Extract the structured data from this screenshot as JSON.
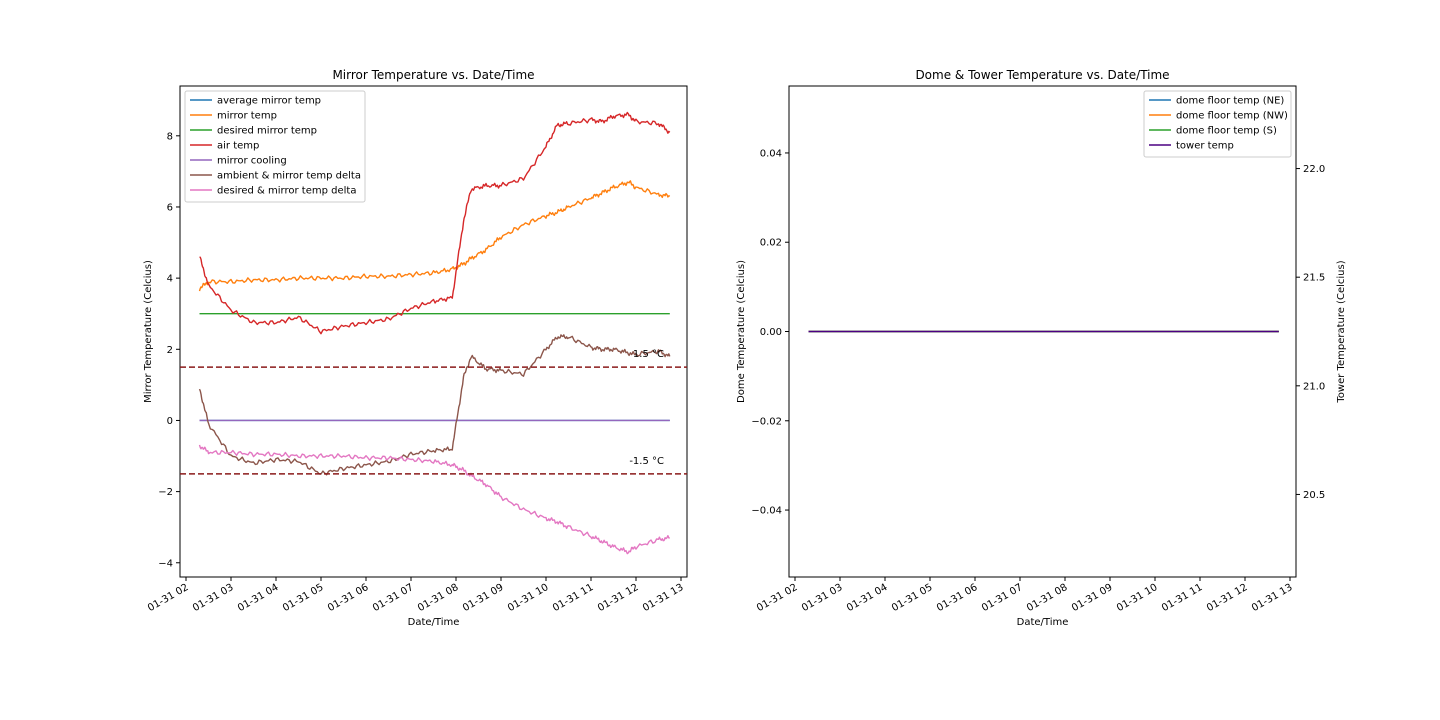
{
  "chart_data": [
    {
      "type": "line",
      "title": "Mirror Temperature vs. Date/Time",
      "xlabel": "Date/Time",
      "ylabel": "Mirror Temperature (Celcius)",
      "xlim": [
        "2023-01-31 01:52",
        "2023-01-31 13:08"
      ],
      "ylim": [
        -4.4,
        9.4
      ],
      "x_ticks": [
        "01-31 02",
        "01-31 03",
        "01-31 04",
        "01-31 05",
        "01-31 06",
        "01-31 07",
        "01-31 08",
        "01-31 09",
        "01-31 10",
        "01-31 11",
        "01-31 12",
        "01-31 13"
      ],
      "y_ticks": [
        "−4",
        "−2",
        "0",
        "2",
        "4",
        "6",
        "8"
      ],
      "legend_position": "upper-left",
      "x": [
        "02:18",
        "02:30",
        "03:00",
        "03:30",
        "04:00",
        "04:30",
        "05:00",
        "05:30",
        "06:00",
        "06:30",
        "07:00",
        "07:30",
        "07:55",
        "08:10",
        "08:20",
        "08:40",
        "09:00",
        "09:30",
        "10:00",
        "10:15",
        "10:30",
        "11:00",
        "11:15",
        "11:30",
        "11:50",
        "12:00",
        "12:30",
        "12:45"
      ],
      "series": [
        {
          "name": "average mirror temp",
          "color": "#1f77b4",
          "values": [
            0,
            0,
            0,
            0,
            0,
            0,
            0,
            0,
            0,
            0,
            0,
            0,
            0,
            0,
            0,
            0,
            0,
            0,
            0,
            0,
            0,
            0,
            0,
            0,
            0,
            0,
            0,
            0
          ]
        },
        {
          "name": "mirror temp",
          "color": "#ff7f0e",
          "values": [
            3.7,
            3.9,
            3.9,
            3.95,
            3.95,
            4.0,
            4.0,
            4.0,
            4.05,
            4.05,
            4.1,
            4.15,
            4.25,
            4.4,
            4.55,
            4.8,
            5.15,
            5.5,
            5.75,
            5.85,
            6.0,
            6.25,
            6.4,
            6.55,
            6.7,
            6.55,
            6.35,
            6.3
          ]
        },
        {
          "name": "desired mirror temp",
          "color": "#2ca02c",
          "values": [
            3,
            3,
            3,
            3,
            3,
            3,
            3,
            3,
            3,
            3,
            3,
            3,
            3,
            3,
            3,
            3,
            3,
            3,
            3,
            3,
            3,
            3,
            3,
            3,
            3,
            3,
            3,
            3
          ]
        },
        {
          "name": "air temp",
          "color": "#d62728",
          "values": [
            4.6,
            3.8,
            3.1,
            2.75,
            2.75,
            2.9,
            2.5,
            2.65,
            2.75,
            2.85,
            3.15,
            3.35,
            3.45,
            5.6,
            6.5,
            6.6,
            6.6,
            6.8,
            7.7,
            8.3,
            8.35,
            8.45,
            8.4,
            8.55,
            8.6,
            8.4,
            8.35,
            8.1
          ]
        },
        {
          "name": "mirror cooling",
          "color": "#9467bd",
          "values": [
            0,
            0,
            0,
            0,
            0,
            0,
            0,
            0,
            0,
            0,
            0,
            0,
            0,
            0,
            0,
            0,
            0,
            0,
            0,
            0,
            0,
            0,
            0,
            0,
            0,
            0,
            0,
            0
          ]
        },
        {
          "name": "ambient & mirror temp delta",
          "color": "#8c564b",
          "values": [
            0.9,
            -0.1,
            -1.0,
            -1.2,
            -1.1,
            -1.15,
            -1.5,
            -1.35,
            -1.25,
            -1.15,
            -0.95,
            -0.85,
            -0.8,
            1.2,
            1.8,
            1.45,
            1.4,
            1.3,
            2.0,
            2.35,
            2.35,
            2.05,
            2.0,
            2.0,
            1.9,
            1.85,
            1.95,
            1.8
          ]
        },
        {
          "name": "desired & mirror temp delta",
          "color": "#e377c2",
          "values": [
            -0.7,
            -0.9,
            -0.9,
            -0.95,
            -0.95,
            -1.0,
            -1.0,
            -1.0,
            -1.05,
            -1.05,
            -1.1,
            -1.15,
            -1.25,
            -1.4,
            -1.55,
            -1.8,
            -2.15,
            -2.5,
            -2.75,
            -2.85,
            -3.0,
            -3.25,
            -3.4,
            -3.55,
            -3.7,
            -3.55,
            -3.35,
            -3.3
          ]
        }
      ],
      "threshold_lines": [
        {
          "value": 1.5,
          "color": "#8b1a1a",
          "style": "dashed",
          "label": "1.5 °C"
        },
        {
          "value": -1.5,
          "color": "#8b1a1a",
          "style": "dashed",
          "label": "-1.5 °C"
        }
      ]
    },
    {
      "type": "line",
      "title": "Dome & Tower Temperature vs. Date/Time",
      "xlabel": "Date/Time",
      "ylabel": "Dome Temperature (Celcius)",
      "y2label": "Tower Temperature (Celcius)",
      "xlim": [
        "2023-01-31 01:52",
        "2023-01-31 13:08"
      ],
      "ylim": [
        -0.055,
        0.055
      ],
      "y2lim": [
        20.12,
        22.38
      ],
      "x_ticks": [
        "01-31 02",
        "01-31 03",
        "01-31 04",
        "01-31 05",
        "01-31 06",
        "01-31 07",
        "01-31 08",
        "01-31 09",
        "01-31 10",
        "01-31 11",
        "01-31 12",
        "01-31 13"
      ],
      "y_ticks": [
        "−0.04",
        "−0.02",
        "0.00",
        "0.02",
        "0.04"
      ],
      "y2_ticks": [
        "20.5",
        "21.0",
        "21.5",
        "22.0"
      ],
      "legend_position": "upper-right",
      "x": [
        "02:18",
        "12:45"
      ],
      "series": [
        {
          "name": "dome floor temp (NE)",
          "color": "#1f77b4",
          "values": [
            0,
            0
          ]
        },
        {
          "name": "dome floor temp (NW)",
          "color": "#ff7f0e",
          "values": [
            0,
            0
          ]
        },
        {
          "name": "dome floor temp (S)",
          "color": "#2ca02c",
          "values": [
            0,
            0
          ]
        },
        {
          "name": "tower temp",
          "color": "#4b0082",
          "values": [
            0,
            0
          ]
        }
      ]
    }
  ]
}
